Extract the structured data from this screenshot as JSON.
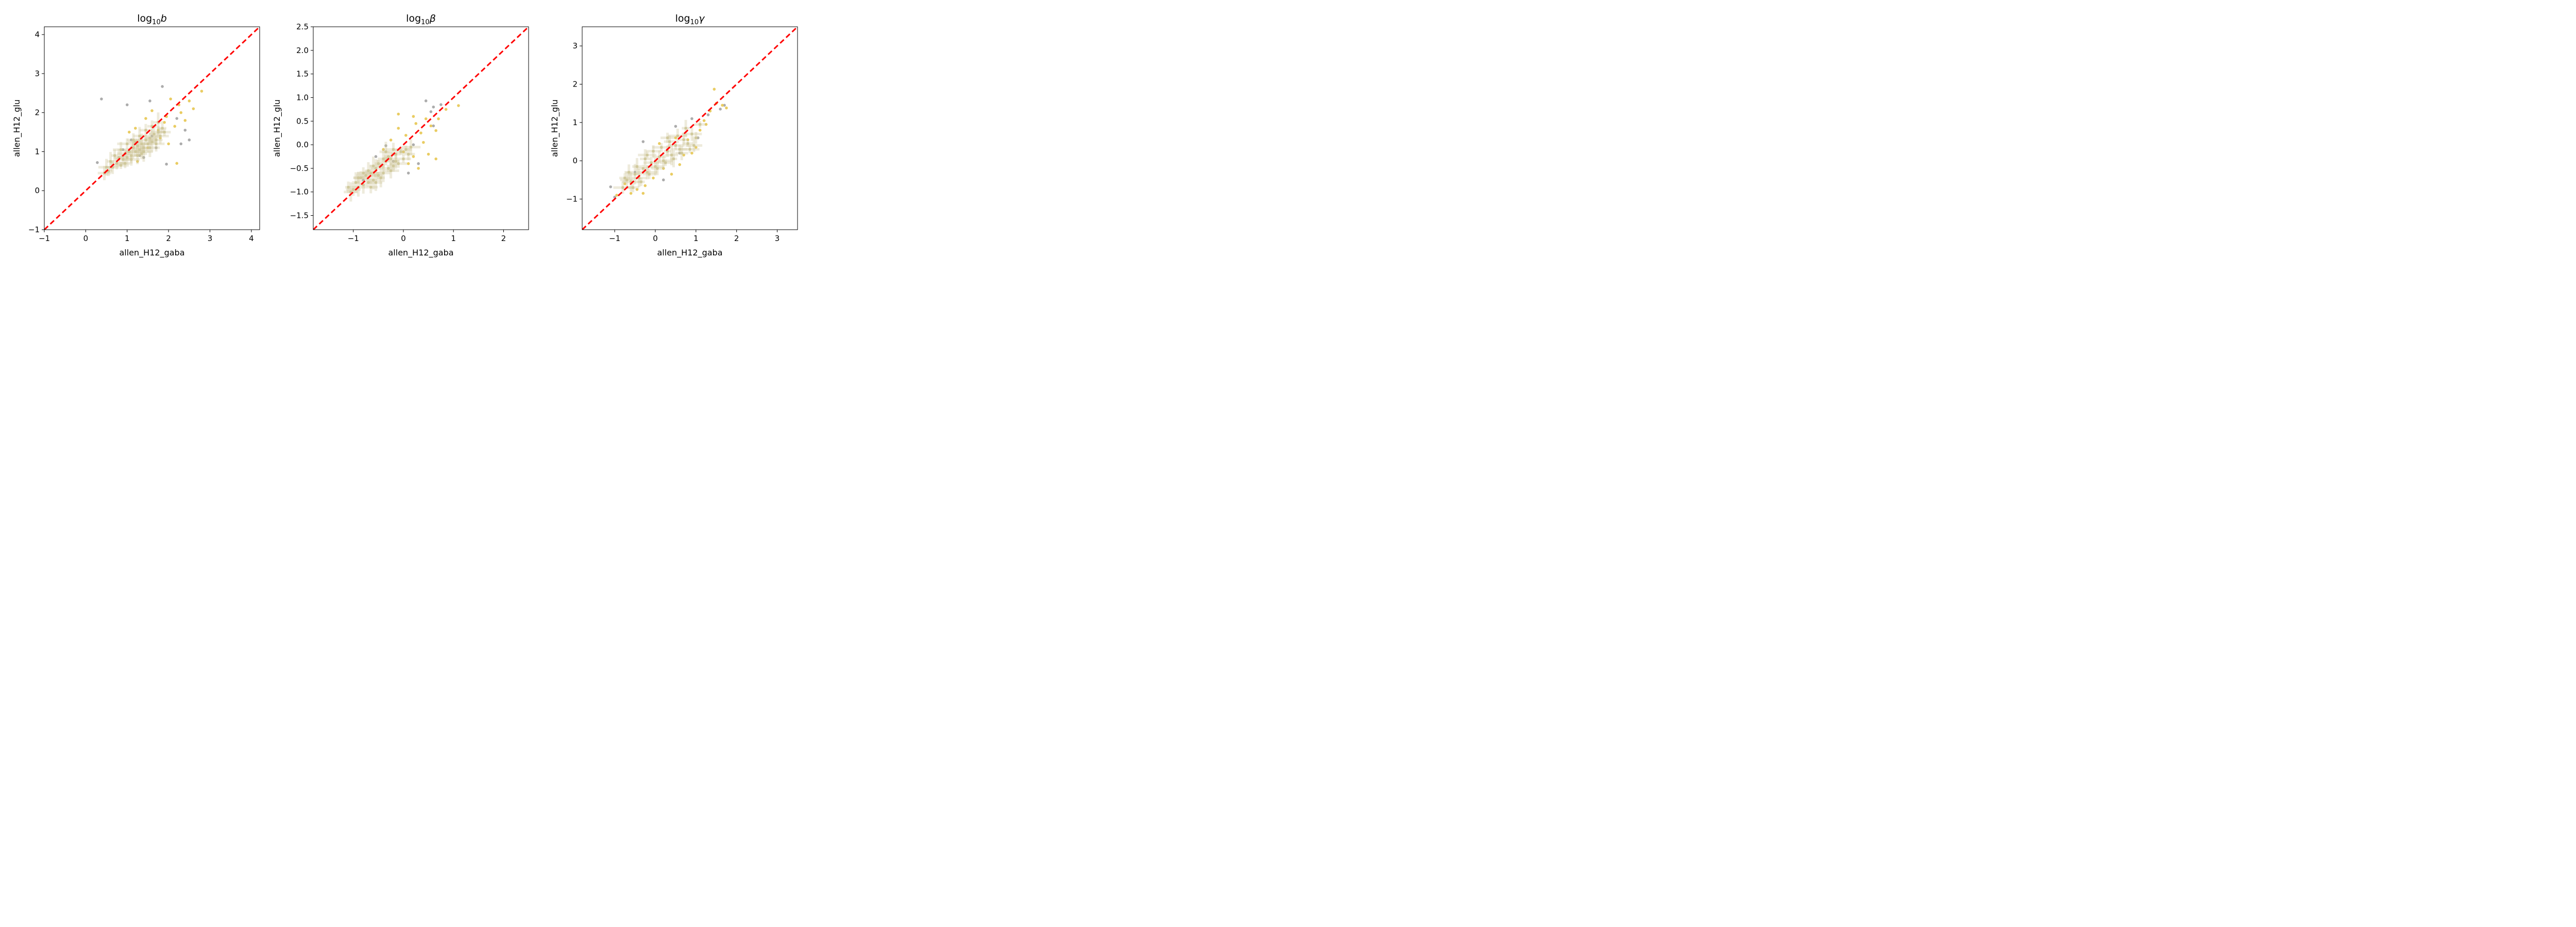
{
  "chart_data": [
    {
      "type": "scatter",
      "title_parts": {
        "base": "log",
        "sub": "10",
        "symbol": "b"
      },
      "xlabel": "allen_H12_gaba",
      "ylabel": "allen_H12_glu",
      "xlim": [
        -1.0,
        4.2
      ],
      "ylim": [
        -1.0,
        4.2
      ],
      "xticks": [
        -1,
        0,
        1,
        2,
        3,
        4
      ],
      "yticks": [
        -1,
        0,
        1,
        2,
        3,
        4
      ],
      "reference_line": {
        "slope": 1,
        "intercept": 0,
        "color": "#ff0000",
        "style": "dashed"
      },
      "series": [
        {
          "color": "#a8a8a8",
          "points": [
            [
              0.38,
              2.35
            ],
            [
              0.28,
              0.72
            ],
            [
              1.0,
              2.2
            ],
            [
              1.55,
              2.3
            ],
            [
              1.85,
              2.67
            ],
            [
              1.95,
              0.68
            ],
            [
              2.5,
              1.3
            ],
            [
              2.4,
              1.55
            ],
            [
              2.2,
              1.85
            ],
            [
              1.3,
              0.9
            ],
            [
              1.7,
              1.1
            ],
            [
              1.1,
              1.3
            ],
            [
              0.9,
              1.05
            ],
            [
              1.6,
              1.4
            ],
            [
              2.3,
              1.2
            ],
            [
              1.4,
              0.85
            ]
          ]
        },
        {
          "color": "#e8c95a",
          "points": [
            [
              2.8,
              2.55
            ],
            [
              2.5,
              2.3
            ],
            [
              2.6,
              2.1
            ],
            [
              2.2,
              0.7
            ],
            [
              2.05,
              2.35
            ],
            [
              2.3,
              2.0
            ],
            [
              1.75,
              1.55
            ],
            [
              1.6,
              2.05
            ],
            [
              1.45,
              1.85
            ],
            [
              1.9,
              1.75
            ],
            [
              2.0,
              1.2
            ],
            [
              1.2,
              1.6
            ],
            [
              1.25,
              0.75
            ],
            [
              1.95,
              1.9
            ],
            [
              2.15,
              1.65
            ],
            [
              1.05,
              1.5
            ],
            [
              1.8,
              1.35
            ],
            [
              2.4,
              1.8
            ],
            [
              1.5,
              1.1
            ],
            [
              2.25,
              2.2
            ]
          ]
        },
        {
          "color": "#cfc79a",
          "points": [
            [
              0.45,
              0.45
            ],
            [
              0.55,
              0.5
            ],
            [
              0.65,
              0.6
            ],
            [
              0.6,
              0.75
            ],
            [
              0.75,
              0.7
            ],
            [
              0.8,
              0.85
            ],
            [
              0.85,
              0.65
            ],
            [
              0.9,
              0.8
            ],
            [
              0.95,
              0.95
            ],
            [
              1.0,
              0.85
            ],
            [
              1.05,
              1.0
            ],
            [
              1.1,
              0.9
            ],
            [
              1.15,
              1.1
            ],
            [
              1.2,
              1.0
            ],
            [
              1.25,
              1.15
            ],
            [
              1.3,
              1.05
            ],
            [
              1.35,
              1.2
            ],
            [
              1.4,
              1.1
            ],
            [
              1.45,
              1.3
            ],
            [
              1.5,
              1.2
            ],
            [
              1.55,
              1.35
            ],
            [
              1.6,
              1.25
            ],
            [
              1.65,
              1.45
            ],
            [
              1.7,
              1.3
            ],
            [
              1.75,
              1.5
            ],
            [
              1.8,
              1.4
            ],
            [
              1.85,
              1.6
            ],
            [
              1.9,
              1.5
            ],
            [
              0.7,
              0.9
            ],
            [
              0.85,
              1.05
            ],
            [
              1.0,
              1.2
            ],
            [
              1.15,
              1.3
            ],
            [
              1.3,
              1.4
            ],
            [
              1.45,
              1.55
            ],
            [
              0.95,
              0.7
            ],
            [
              1.1,
              0.8
            ],
            [
              1.25,
              0.9
            ],
            [
              1.4,
              1.0
            ],
            [
              1.55,
              1.1
            ],
            [
              1.7,
              1.2
            ],
            [
              1.2,
              1.25
            ],
            [
              1.35,
              0.95
            ],
            [
              1.6,
              1.65
            ],
            [
              0.5,
              0.6
            ],
            [
              1.75,
              1.75
            ]
          ]
        }
      ]
    },
    {
      "type": "scatter",
      "title_parts": {
        "base": "log",
        "sub": "10",
        "symbol": "β"
      },
      "xlabel": "allen_H12_gaba",
      "ylabel": "allen_H12_glu",
      "xlim": [
        -1.8,
        2.5
      ],
      "ylim": [
        -1.8,
        2.5
      ],
      "xticks": [
        -1,
        0,
        1,
        2
      ],
      "yticks": [
        -1.5,
        -1.0,
        -0.5,
        0.0,
        0.5,
        1.0,
        1.5,
        2.0,
        2.5
      ],
      "ytick_labels": [
        "−1.5",
        "−1.0",
        "−0.5",
        "0.0",
        "0.5",
        "1.0",
        "1.5",
        "2.0",
        "2.5"
      ],
      "reference_line": {
        "slope": 1,
        "intercept": 0,
        "color": "#ff0000",
        "style": "dashed"
      },
      "series": [
        {
          "color": "#a8a8a8",
          "points": [
            [
              0.45,
              0.93
            ],
            [
              0.6,
              0.4
            ],
            [
              0.6,
              0.8
            ],
            [
              0.75,
              0.85
            ],
            [
              -0.35,
              -0.02
            ],
            [
              -0.55,
              -0.25
            ],
            [
              0.3,
              -0.4
            ],
            [
              0.1,
              -0.6
            ],
            [
              -0.8,
              -0.75
            ],
            [
              0.55,
              0.7
            ],
            [
              -0.2,
              -0.35
            ],
            [
              0.0,
              -0.15
            ],
            [
              0.2,
              0.0
            ]
          ]
        },
        {
          "color": "#e8c95a",
          "points": [
            [
              1.1,
              0.83
            ],
            [
              0.85,
              0.75
            ],
            [
              -0.1,
              0.65
            ],
            [
              0.2,
              0.6
            ],
            [
              0.45,
              0.55
            ],
            [
              0.7,
              0.55
            ],
            [
              0.55,
              0.4
            ],
            [
              0.35,
              0.25
            ],
            [
              0.65,
              0.3
            ],
            [
              0.4,
              0.05
            ],
            [
              0.65,
              -0.3
            ],
            [
              0.5,
              -0.2
            ],
            [
              0.3,
              -0.5
            ],
            [
              0.1,
              -0.4
            ],
            [
              -0.25,
              0.1
            ],
            [
              -0.1,
              0.35
            ],
            [
              0.0,
              -0.15
            ],
            [
              0.2,
              -0.25
            ],
            [
              0.25,
              0.45
            ],
            [
              -0.4,
              -0.1
            ],
            [
              0.05,
              0.2
            ]
          ]
        },
        {
          "color": "#cfc79a",
          "points": [
            [
              -1.1,
              -0.9
            ],
            [
              -1.0,
              -0.95
            ],
            [
              -0.95,
              -0.8
            ],
            [
              -0.9,
              -0.9
            ],
            [
              -0.85,
              -0.7
            ],
            [
              -0.8,
              -0.85
            ],
            [
              -0.75,
              -0.65
            ],
            [
              -0.7,
              -0.8
            ],
            [
              -0.65,
              -0.6
            ],
            [
              -0.6,
              -0.75
            ],
            [
              -0.55,
              -0.5
            ],
            [
              -0.5,
              -0.65
            ],
            [
              -0.45,
              -0.45
            ],
            [
              -0.4,
              -0.6
            ],
            [
              -0.35,
              -0.35
            ],
            [
              -0.3,
              -0.5
            ],
            [
              -0.25,
              -0.3
            ],
            [
              -0.2,
              -0.45
            ],
            [
              -0.15,
              -0.2
            ],
            [
              -0.1,
              -0.4
            ],
            [
              -0.05,
              -0.15
            ],
            [
              0.0,
              -0.3
            ],
            [
              0.05,
              -0.1
            ],
            [
              0.1,
              -0.2
            ],
            [
              -0.7,
              -0.55
            ],
            [
              -0.55,
              -0.8
            ],
            [
              -0.4,
              -0.3
            ],
            [
              -0.25,
              -0.55
            ],
            [
              -0.9,
              -0.7
            ],
            [
              -0.6,
              -0.45
            ],
            [
              -0.5,
              -0.4
            ],
            [
              -0.3,
              -0.25
            ],
            [
              -0.15,
              -0.35
            ],
            [
              -0.8,
              -0.6
            ],
            [
              -1.05,
              -1.0
            ],
            [
              -0.65,
              -0.9
            ],
            [
              -0.45,
              -0.7
            ],
            [
              -0.2,
              -0.1
            ],
            [
              0.15,
              -0.05
            ],
            [
              -0.35,
              -0.15
            ]
          ]
        }
      ]
    },
    {
      "type": "scatter",
      "title_parts": {
        "base": "log",
        "sub": "10",
        "symbol": "γ"
      },
      "xlabel": "allen_H12_gaba",
      "ylabel": "allen_H12_glu",
      "xlim": [
        -1.8,
        3.5
      ],
      "ylim": [
        -1.8,
        3.5
      ],
      "xticks": [
        -1,
        0,
        1,
        2,
        3
      ],
      "yticks": [
        -1,
        0,
        1,
        2,
        3
      ],
      "reference_line": {
        "slope": 1,
        "intercept": 0,
        "color": "#ff0000",
        "style": "dashed"
      },
      "series": [
        {
          "color": "#a8a8a8",
          "points": [
            [
              -1.1,
              -0.68
            ],
            [
              -1.0,
              -0.95
            ],
            [
              -0.3,
              0.5
            ],
            [
              0.5,
              0.9
            ],
            [
              1.3,
              1.2
            ],
            [
              1.6,
              1.35
            ],
            [
              1.7,
              1.45
            ],
            [
              0.2,
              -0.5
            ],
            [
              0.6,
              0.2
            ],
            [
              1.05,
              0.6
            ],
            [
              -0.5,
              -0.3
            ],
            [
              0.9,
              1.1
            ]
          ]
        },
        {
          "color": "#e8c95a",
          "points": [
            [
              1.45,
              1.87
            ],
            [
              1.35,
              1.3
            ],
            [
              1.2,
              1.05
            ],
            [
              1.5,
              1.5
            ],
            [
              1.75,
              1.38
            ],
            [
              1.65,
              1.45
            ],
            [
              1.0,
              0.35
            ],
            [
              1.1,
              0.8
            ],
            [
              0.8,
              0.55
            ],
            [
              0.6,
              -0.1
            ],
            [
              0.4,
              -0.35
            ],
            [
              0.2,
              -0.2
            ],
            [
              -0.05,
              -0.45
            ],
            [
              -0.25,
              -0.65
            ],
            [
              -0.45,
              -0.75
            ],
            [
              -0.6,
              -0.85
            ],
            [
              -0.75,
              -0.6
            ],
            [
              -0.95,
              -0.9
            ],
            [
              -0.3,
              -0.85
            ],
            [
              0.9,
              0.2
            ],
            [
              0.5,
              0.6
            ],
            [
              0.1,
              0.45
            ],
            [
              1.25,
              0.95
            ],
            [
              0.7,
              0.15
            ]
          ]
        },
        {
          "color": "#cfc79a",
          "points": [
            [
              -0.8,
              -0.7
            ],
            [
              -0.7,
              -0.5
            ],
            [
              -0.6,
              -0.55
            ],
            [
              -0.5,
              -0.35
            ],
            [
              -0.4,
              -0.45
            ],
            [
              -0.3,
              -0.2
            ],
            [
              -0.2,
              -0.3
            ],
            [
              -0.1,
              -0.05
            ],
            [
              0.0,
              -0.15
            ],
            [
              0.1,
              0.1
            ],
            [
              0.2,
              0.0
            ],
            [
              0.3,
              0.25
            ],
            [
              0.4,
              0.15
            ],
            [
              0.5,
              0.4
            ],
            [
              0.6,
              0.3
            ],
            [
              0.7,
              0.55
            ],
            [
              0.8,
              0.45
            ],
            [
              0.9,
              0.7
            ],
            [
              1.0,
              0.6
            ],
            [
              -0.65,
              -0.3
            ],
            [
              -0.45,
              -0.15
            ],
            [
              -0.25,
              0.05
            ],
            [
              -0.05,
              0.25
            ],
            [
              0.15,
              0.35
            ],
            [
              0.35,
              0.5
            ],
            [
              0.55,
              0.65
            ],
            [
              -0.35,
              -0.55
            ],
            [
              -0.15,
              -0.35
            ],
            [
              0.05,
              -0.2
            ],
            [
              0.25,
              -0.05
            ],
            [
              0.45,
              0.05
            ],
            [
              0.65,
              0.2
            ],
            [
              0.85,
              0.3
            ],
            [
              -0.55,
              -0.7
            ],
            [
              1.1,
              0.95
            ],
            [
              0.75,
              0.85
            ],
            [
              -0.2,
              0.15
            ],
            [
              0.3,
              0.6
            ],
            [
              -0.75,
              -0.45
            ],
            [
              0.95,
              0.4
            ]
          ]
        }
      ]
    }
  ]
}
